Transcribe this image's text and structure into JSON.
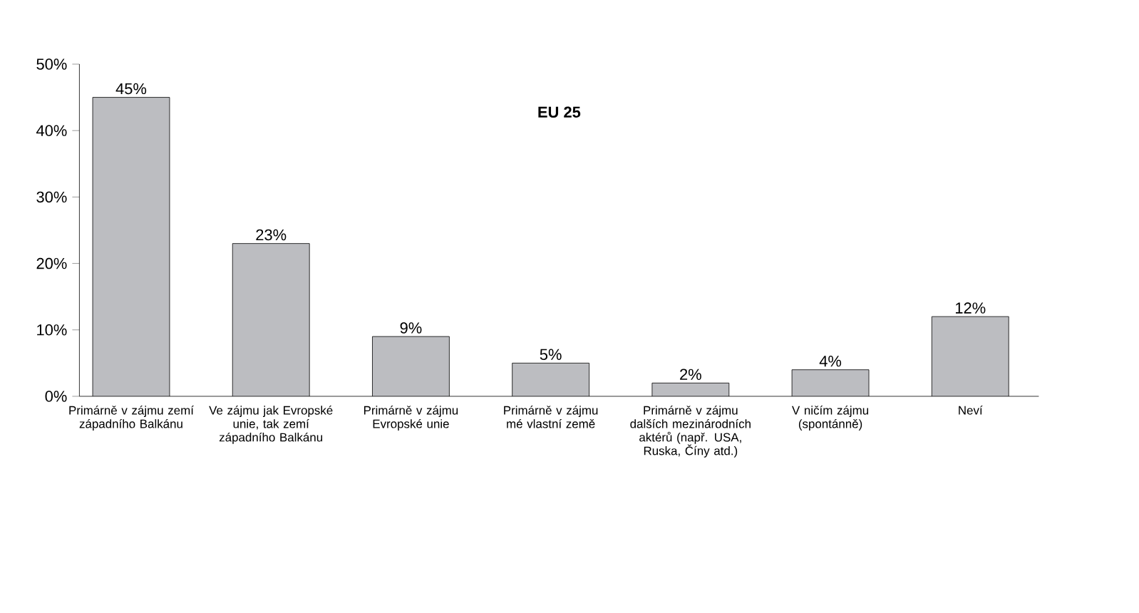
{
  "chart_data": {
    "type": "bar",
    "title": "EU 25",
    "categories": [
      "Primárně v zájmu zemí západního Balkánu",
      "Ve zájmu jak Evropské unie, tak zemí západního Balkánu",
      "Primárně v zájmu Evropské unie",
      "Primárně v zájmu mé vlastní země",
      "Primárně v zájmu dalších mezinárodních aktérů (např. USA, Ruska, Číny atd.)",
      "V ničím zájmu (spontánně)",
      "Neví"
    ],
    "values": [
      45,
      23,
      9,
      5,
      2,
      4,
      12
    ],
    "value_labels": [
      "45%",
      "23%",
      "9%",
      "5%",
      "2%",
      "4%",
      "12%"
    ],
    "color": "#bcbdc1",
    "ylim": [
      0,
      50
    ],
    "yticks": [
      {
        "value": 0,
        "label": "0%"
      },
      {
        "value": 10,
        "label": "10%"
      },
      {
        "value": 20,
        "label": "20%"
      },
      {
        "value": 30,
        "label": "30%"
      },
      {
        "value": 40,
        "label": "40%"
      },
      {
        "value": 50,
        "label": "50%"
      }
    ]
  }
}
